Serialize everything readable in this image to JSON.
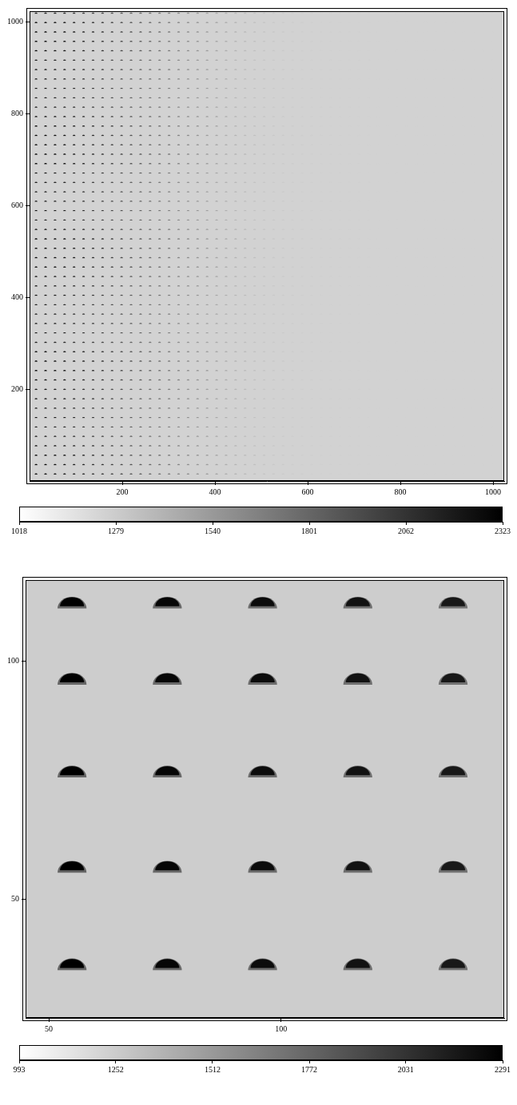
{
  "chart_data": [
    {
      "type": "image",
      "xlim": [
        0,
        1024
      ],
      "ylim": [
        0,
        1024
      ],
      "xticks": [
        200,
        400,
        600,
        800,
        1000
      ],
      "yticks": [
        200,
        400,
        600,
        800,
        1000
      ],
      "grid": false,
      "background": 1250,
      "sources": {
        "x": [
          14,
          34.5,
          55,
          75.5,
          96,
          116.5,
          137,
          157.5,
          178,
          198.5,
          219,
          239.5,
          260,
          280.5,
          301,
          321.5,
          342,
          362.5,
          383,
          403.5,
          424,
          444.5,
          465,
          485.5,
          506,
          526.5,
          547,
          567.5,
          588,
          608.5,
          629,
          649.5,
          670,
          690.5,
          711,
          731.5,
          752,
          772.5,
          793,
          813.5,
          834,
          854.5,
          875,
          895.5,
          916,
          936.5,
          957,
          977.5,
          998,
          1018.5
        ],
        "y": [
          14.5,
          35,
          55.5,
          76,
          96.5,
          117,
          137.5,
          158,
          178.5,
          199,
          219.5,
          240,
          260.5,
          281,
          301.5,
          322,
          342.5,
          363,
          383.5,
          404,
          424.5,
          445,
          465.5,
          486,
          506.5,
          527,
          547.5,
          568,
          588.5,
          609,
          629.5,
          650,
          670.5,
          691,
          711.5,
          732,
          752.5,
          773,
          793.5,
          814,
          834.5,
          855,
          875.5,
          896,
          916.5,
          937,
          957.5,
          978,
          998.5,
          1019
        ],
        "peaks": [
          2300,
          2280,
          2250,
          2220,
          2180,
          2140,
          2100,
          2060,
          2000,
          1950,
          1900,
          1850,
          1800,
          1750,
          1700,
          1650,
          1600,
          1560,
          1520,
          1480,
          1440,
          1400,
          1370,
          1340,
          1320,
          1300,
          1290,
          1280,
          1270,
          1265,
          1260,
          1258,
          1256,
          1254,
          1252,
          1251,
          1250,
          1250,
          1250,
          1250,
          1250,
          1250,
          1250,
          1250,
          1250,
          1250,
          1250,
          1250,
          1250,
          1250
        ]
      },
      "colorbar": {
        "range": [
          1018,
          2323
        ],
        "ticks": [
          1018,
          1279,
          1540,
          1801,
          2062,
          2323
        ]
      }
    },
    {
      "type": "image",
      "xlim": [
        45,
        148
      ],
      "ylim": [
        25,
        117
      ],
      "xticks": [
        50,
        100
      ],
      "yticks": [
        50,
        100
      ],
      "grid": false,
      "background": 1250,
      "sources": {
        "x": [
          55,
          75.5,
          96,
          116.5,
          137
        ],
        "y": [
          35.5,
          56,
          76,
          95.5,
          111.5
        ],
        "peaks": [
          2291,
          2260,
          2230,
          2200,
          2170
        ]
      },
      "colorbar": {
        "range": [
          993,
          2291
        ],
        "ticks": [
          993,
          1252,
          1512,
          1772,
          2031,
          2291
        ]
      }
    }
  ]
}
